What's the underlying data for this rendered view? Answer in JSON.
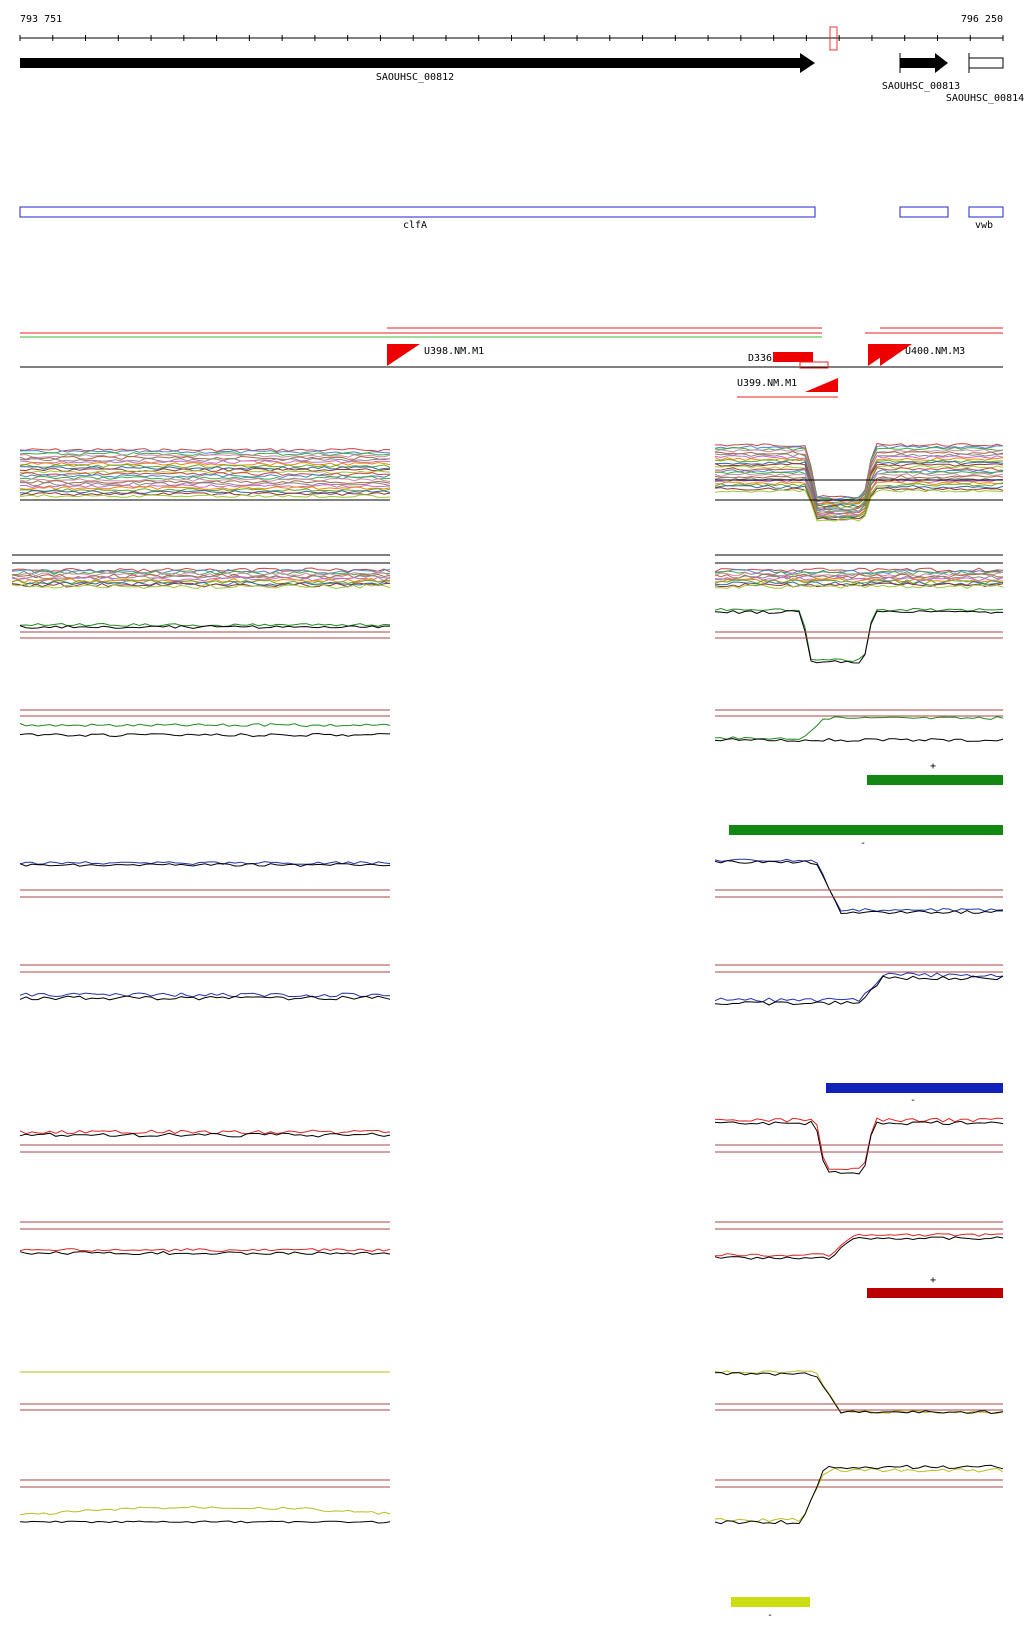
{
  "ruler": {
    "start": "793 751",
    "end": "796 250"
  },
  "genes": [
    {
      "label": "SAOUHSC_00812"
    },
    {
      "label": "SAOUHSC_00813"
    },
    {
      "label": "SAOUHSC_00814"
    }
  ],
  "annotations": [
    {
      "label": "clfA"
    },
    {
      "label": "vwb"
    }
  ],
  "features": [
    {
      "label": "U398.NM.M1"
    },
    {
      "label": "D336"
    },
    {
      "label": "U399.NM.M1"
    },
    {
      "label": "U400.NM.M3"
    }
  ],
  "strand_labels": [
    "+",
    "-",
    "-",
    "+",
    "-"
  ]
}
